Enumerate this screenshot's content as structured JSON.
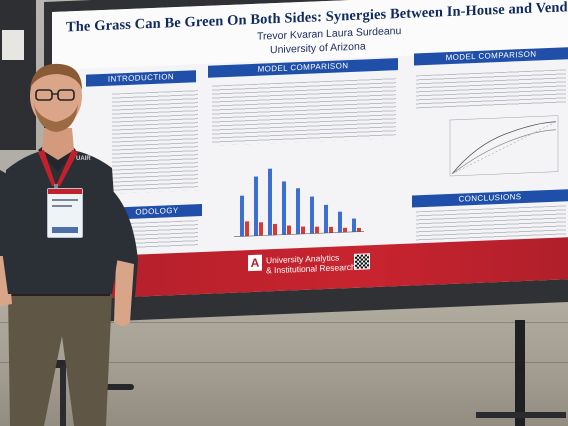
{
  "poster": {
    "title": "The Grass Can Be Green On Both Sides:  Synergies Between In-House and Vendor Data Science T",
    "authors": "Trevor Kvaran  Laura Surdeanu",
    "affiliation": "University of Arizona",
    "sections": {
      "introduction": "INTRODUCTION",
      "model_comparison_1": "MODEL COMPARISON",
      "model_comparison_2": "MODEL COMPARISON",
      "methodology": "ODOLOGY",
      "conclusions": "CONCLUSIONS"
    },
    "footer": {
      "logo_letter": "A",
      "unit_line1": "University Analytics",
      "unit_line2": "& Institutional Research"
    }
  },
  "badge": {
    "brand": "UAIR"
  },
  "colors": {
    "poster_blue": "#1f4fa8",
    "footer_red": "#c8242f",
    "shirt": "#2b2f36",
    "lanyard": "#c2202b"
  },
  "chart_data": {
    "type": "bar",
    "series": [
      {
        "values": [
          0.55,
          0.8,
          0.9,
          0.72,
          0.62,
          0.5,
          0.38,
          0.28,
          0.18
        ]
      },
      {
        "values": [
          0.2,
          0.18,
          0.15,
          0.12,
          0.1,
          0.09,
          0.08,
          0.06,
          0.05
        ]
      }
    ],
    "colors": [
      "#3b6fd1",
      "#d63a34"
    ]
  }
}
